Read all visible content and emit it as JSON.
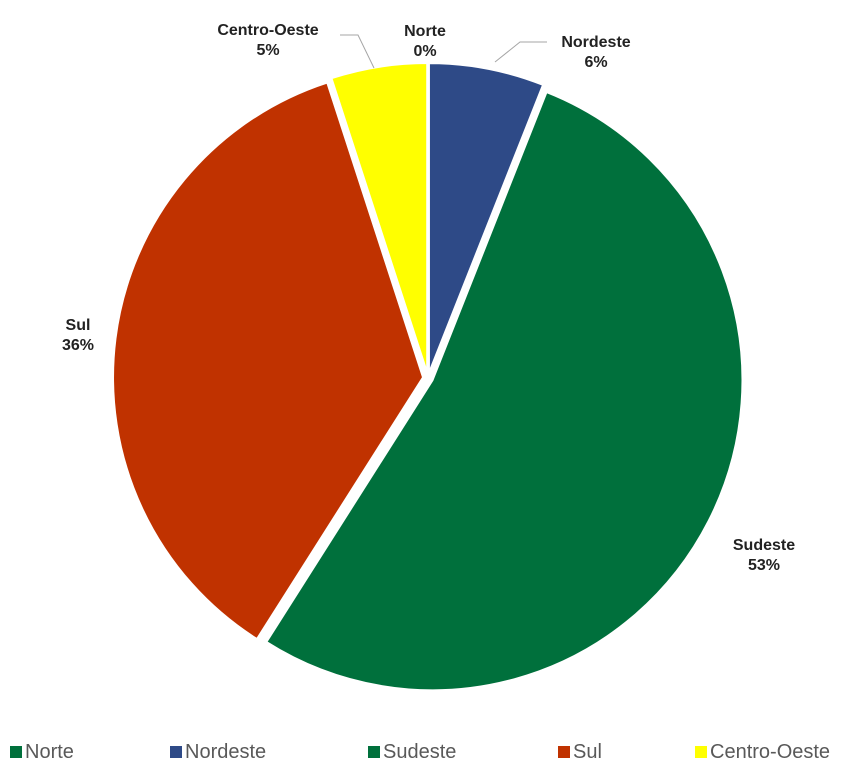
{
  "chart_data": {
    "type": "pie",
    "title": "",
    "categories": [
      "Norte",
      "Nordeste",
      "Sudeste",
      "Sul",
      "Centro-Oeste"
    ],
    "values": [
      0,
      6,
      53,
      36,
      5
    ],
    "labels": [
      "0%",
      "6%",
      "53%",
      "36%",
      "5%"
    ],
    "colors": [
      "#00703C",
      "#2E4A87",
      "#00703C",
      "#C03200",
      "#FFFF00"
    ],
    "legend_position": "bottom",
    "slice_order": "clockwise from top"
  }
}
